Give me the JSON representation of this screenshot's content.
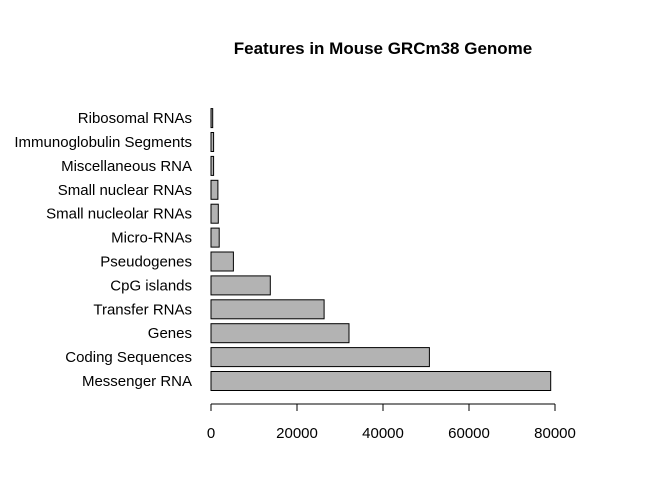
{
  "chart_data": {
    "type": "bar",
    "orientation": "horizontal",
    "title": "Features in Mouse GRCm38 Genome",
    "xlabel": "",
    "ylabel": "",
    "categories": [
      "Messenger RNA",
      "Coding Sequences",
      "Genes",
      "Transfer RNAs",
      "CpG islands",
      "Pseudogenes",
      "Micro-RNAs",
      "Small nucleolar RNAs",
      "Small nuclear RNAs",
      "Miscellaneous RNA",
      "Immunoglobulin Segments",
      "Ribosomal RNAs"
    ],
    "values": [
      79000,
      50800,
      32100,
      26300,
      13800,
      5200,
      1900,
      1700,
      1600,
      600,
      600,
      400
    ],
    "xlim": [
      0,
      80000
    ],
    "xticks": [
      0,
      20000,
      40000,
      60000,
      80000
    ],
    "xtick_labels": [
      "0",
      "20000",
      "40000",
      "60000",
      "80000"
    ],
    "bar_color": "#b3b3b3",
    "grid": false,
    "legend": "none"
  }
}
